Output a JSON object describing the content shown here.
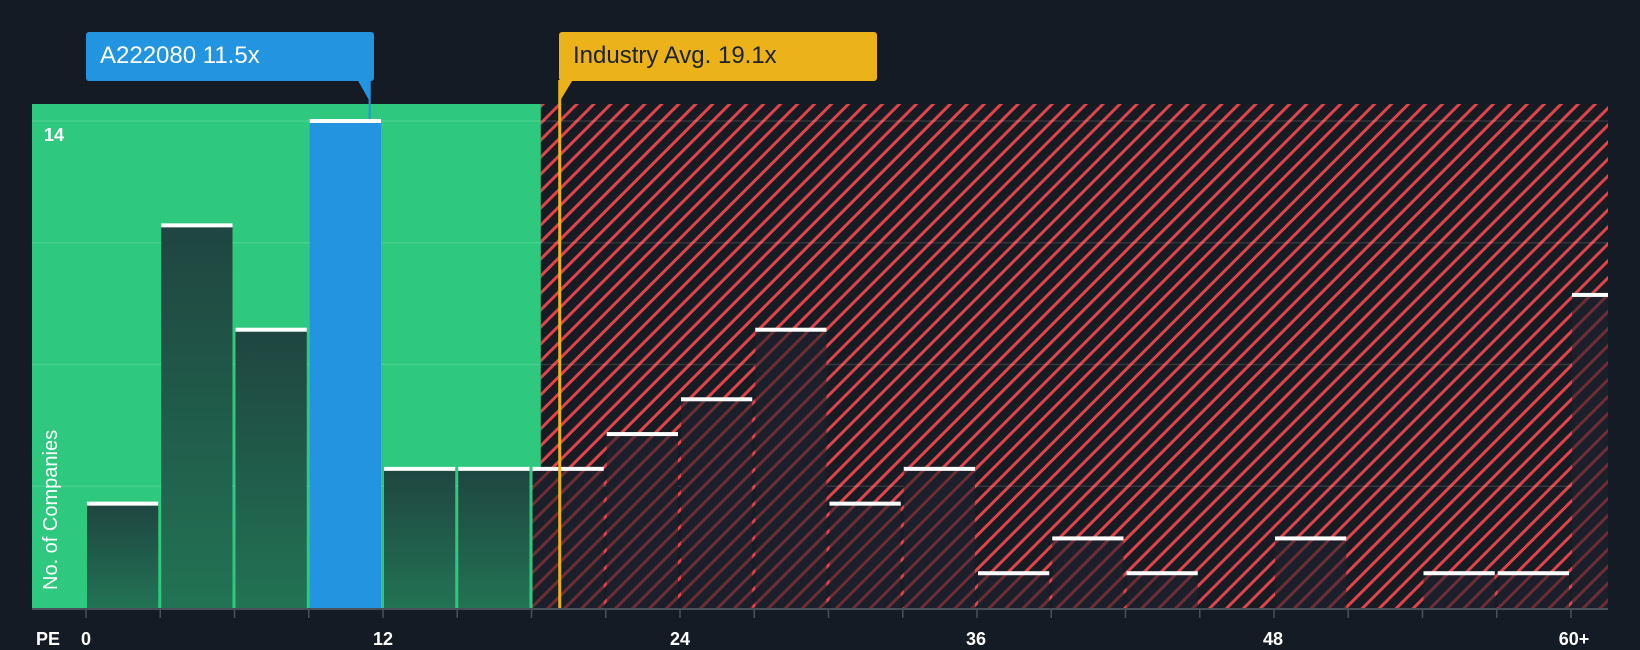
{
  "company": {
    "label": "A222080 11.5x",
    "ticker": "A222080",
    "pe": 11.5,
    "color": "#2394e0"
  },
  "industry": {
    "label": "Industry Avg. 19.1x",
    "pe": 19.1,
    "color": "#ebb21a"
  },
  "axes": {
    "x_label": "PE",
    "y_label": "No. of Companies",
    "y_tick_label": "14",
    "x_tick_labels": [
      "0",
      "12",
      "24",
      "36",
      "48",
      "60+"
    ]
  },
  "colors": {
    "background": "#151b24",
    "undervalued_zone": "#2ec97e",
    "overvalued_hatch": "#e0434a",
    "bar_in_green": "#1f4a3e",
    "bar_highlight": "#2394e0",
    "bar_cap": "#ffffff"
  },
  "chart_data": {
    "type": "bar",
    "title": "",
    "xlabel": "PE",
    "ylabel": "No. of Companies",
    "categories": [
      "0-3",
      "3-6",
      "6-9",
      "9-12",
      "12-15",
      "15-18",
      "18-21",
      "21-24",
      "24-27",
      "27-30",
      "30-33",
      "33-36",
      "36-39",
      "39-42",
      "42-45",
      "45-48",
      "48-51",
      "51-54",
      "54-57",
      "57-60",
      "60+"
    ],
    "values": [
      3,
      11,
      8,
      14,
      4,
      4,
      4,
      5,
      6,
      8,
      3,
      4,
      1,
      2,
      1,
      0,
      2,
      0,
      1,
      1,
      9
    ],
    "highlight_bin": "9-12",
    "ylim": [
      0,
      14.5
    ],
    "y_ticks": [
      14
    ],
    "x_ticks": [
      0,
      12,
      24,
      36,
      48,
      60
    ],
    "x_tick_labels": [
      "0",
      "12",
      "24",
      "36",
      "48",
      "60+"
    ],
    "grid": true,
    "annotations": [
      {
        "text": "A222080 11.5x",
        "x": 11.5
      },
      {
        "text": "Industry Avg. 19.1x",
        "x": 19.1
      }
    ],
    "zones": [
      {
        "name": "below industry (green)",
        "from": 0,
        "to": 18.5
      },
      {
        "name": "above industry (red hatch)",
        "from": 18.5,
        "to": 62.5
      }
    ]
  }
}
